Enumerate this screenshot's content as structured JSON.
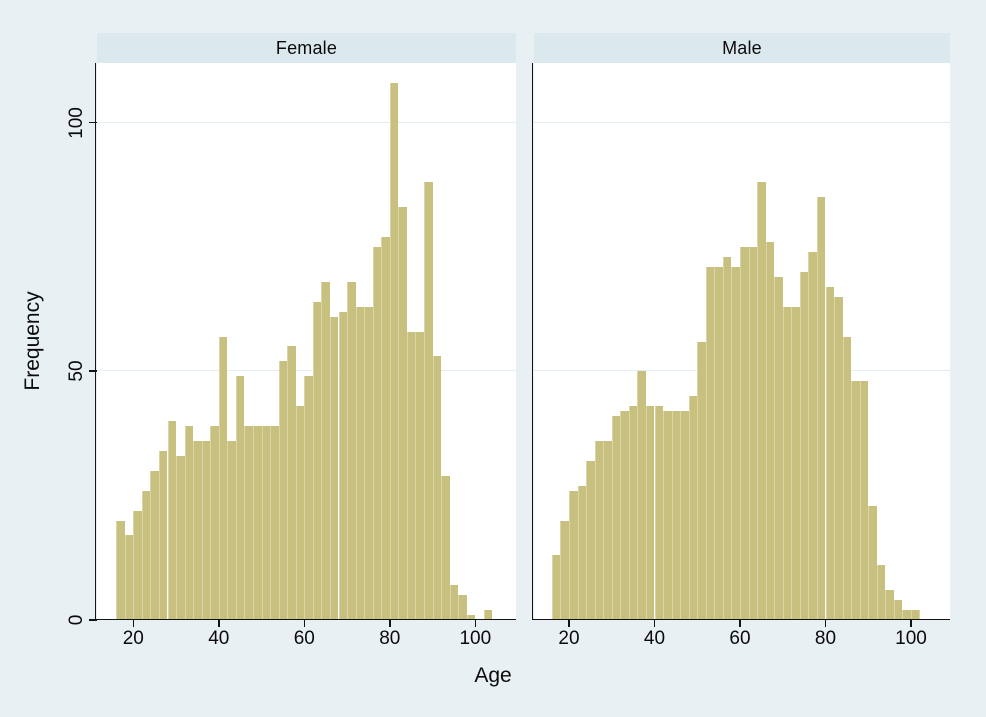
{
  "figure": {
    "xlabel": "Age",
    "ylabel": "Frequency"
  },
  "colors": {
    "background": "#e9f0f3",
    "panel_band": "#dbe8ee",
    "plot_background": "#ffffff",
    "gridline": "#e3eef4",
    "axis": "#141414",
    "text": "#0b0b0b",
    "bar_fill": "#c8c07f",
    "bar_edge": "#dad4a8"
  },
  "chart_data": {
    "type": "bar",
    "subtype": "histogram-faceted",
    "xlabel": "Age",
    "ylabel": "Frequency",
    "bin_width": 2,
    "bin_start": 16,
    "x_ticks": [
      20,
      40,
      60,
      80,
      100
    ],
    "y_ticks": [
      0,
      50,
      100
    ],
    "ylim": [
      0,
      112
    ],
    "xlim": [
      11.5,
      110
    ],
    "grid": true,
    "legend": "none",
    "panels": [
      {
        "title": "Female",
        "bin_start": 16,
        "values": [
          20,
          17,
          22,
          26,
          30,
          34,
          40,
          33,
          39,
          36,
          36,
          39,
          57,
          36,
          49,
          39,
          39,
          39,
          39,
          52,
          55,
          43,
          49,
          64,
          68,
          61,
          62,
          68,
          63,
          63,
          75,
          77,
          108,
          83,
          58,
          58,
          88,
          53,
          29,
          7,
          5,
          1,
          0,
          2,
          0
        ]
      },
      {
        "title": "Male",
        "bin_start": 16,
        "values": [
          13,
          20,
          26,
          27,
          32,
          36,
          36,
          41,
          42,
          43,
          50,
          43,
          43,
          42,
          42,
          42,
          45,
          56,
          71,
          71,
          73,
          71,
          75,
          75,
          88,
          76,
          69,
          63,
          63,
          70,
          74,
          85,
          67,
          65,
          57,
          48,
          48,
          23,
          11,
          6,
          4,
          2,
          2
        ]
      }
    ]
  }
}
